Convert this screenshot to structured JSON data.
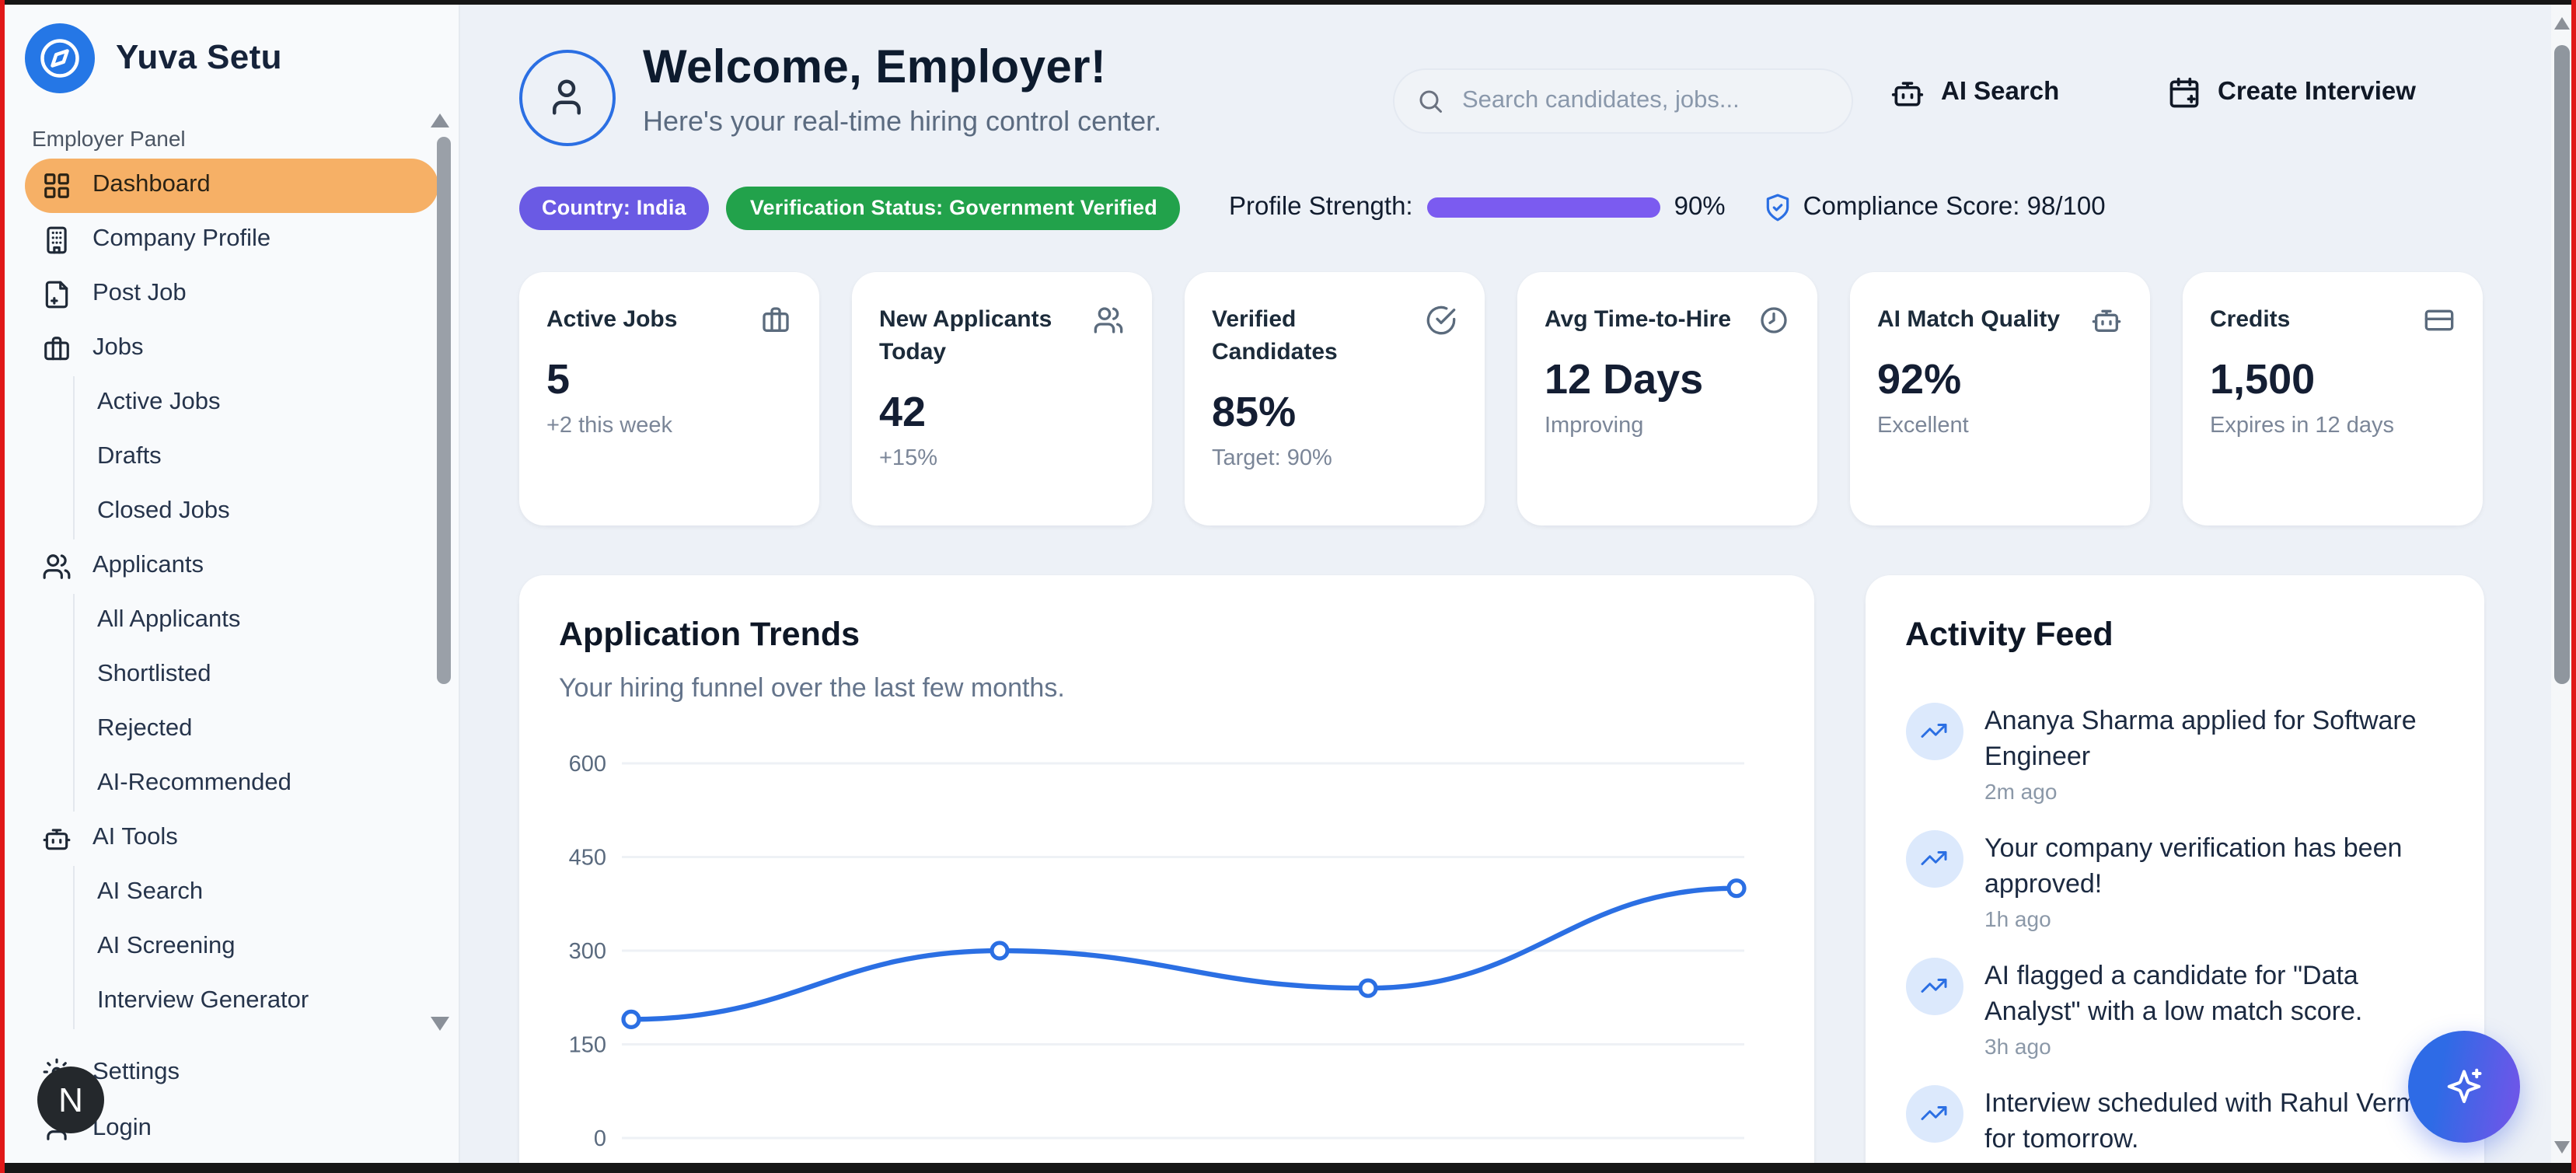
{
  "brand": {
    "name": "Yuva Setu",
    "logo_icon": "compass",
    "logo_color": "#2577e6"
  },
  "sidebar": {
    "section_label": "Employer Panel",
    "active_item_color": "#f6b066",
    "items": [
      {
        "label": "Dashboard",
        "icon": "grid",
        "active": true,
        "indent": 0
      },
      {
        "label": "Company Profile",
        "icon": "building",
        "indent": 0
      },
      {
        "label": "Post Job",
        "icon": "file-plus",
        "indent": 0
      },
      {
        "label": "Jobs",
        "icon": "briefcase",
        "indent": 0
      },
      {
        "label": "Active Jobs",
        "indent": 1
      },
      {
        "label": "Drafts",
        "indent": 1
      },
      {
        "label": "Closed Jobs",
        "indent": 1
      },
      {
        "label": "Applicants",
        "icon": "users",
        "indent": 0
      },
      {
        "label": "All Applicants",
        "indent": 1
      },
      {
        "label": "Shortlisted",
        "indent": 1
      },
      {
        "label": "Rejected",
        "indent": 1
      },
      {
        "label": "AI-Recommended",
        "indent": 1
      },
      {
        "label": "AI Tools",
        "icon": "bot",
        "indent": 0
      },
      {
        "label": "AI Search",
        "indent": 1
      },
      {
        "label": "AI Screening",
        "indent": 1
      },
      {
        "label": "Interview Generator",
        "indent": 1
      }
    ],
    "footer_items": [
      {
        "label": "Settings",
        "icon": "gear"
      },
      {
        "label": "Login",
        "icon": "user"
      }
    ],
    "overlay_badge": "N"
  },
  "header": {
    "title": "Welcome, Employer!",
    "subtitle": "Here's your real-time hiring control center.",
    "avatar_icon": "user",
    "search_placeholder": "Search candidates, jobs...",
    "actions": [
      {
        "label": "AI Search",
        "icon": "bot"
      },
      {
        "label": "Create Interview",
        "icon": "calendar-plus"
      }
    ]
  },
  "status_bar": {
    "badges": [
      {
        "label": "Country: India",
        "color": "#6a5ae4"
      },
      {
        "label": "Verification Status: Government Verified",
        "color": "#22a24b"
      }
    ],
    "profile_strength": {
      "label": "Profile Strength:",
      "percent": 90,
      "value_label": "90%",
      "fill_color": "#2b6fe3",
      "track_color": "#7b5bf0"
    },
    "compliance": {
      "label": "Compliance Score: 98/100",
      "icon": "shield-check",
      "icon_color": "#2b6fe3"
    }
  },
  "stats": [
    {
      "title": "Active Jobs",
      "icon": "briefcase",
      "value": "5",
      "note": "+2 this week"
    },
    {
      "title": "New Applicants Today",
      "icon": "users",
      "value": "42",
      "note": "+15%"
    },
    {
      "title": "Verified Candidates",
      "icon": "check-circle",
      "value": "85%",
      "note": "Target: 90%"
    },
    {
      "title": "Avg Time-to-Hire",
      "icon": "clock",
      "value": "12 Days",
      "note": "Improving"
    },
    {
      "title": "AI Match Quality",
      "icon": "bot",
      "value": "92%",
      "note": "Excellent"
    },
    {
      "title": "Credits",
      "icon": "credit-card",
      "value": "1,500",
      "note": "Expires in 12 days"
    }
  ],
  "chart_card": {
    "title": "Application Trends",
    "subtitle": "Your hiring funnel over the last few months."
  },
  "chart_data": {
    "type": "line",
    "values": [
      190,
      300,
      240,
      400
    ],
    "x_labels": [],
    "x_labels_note": "x-axis tick labels are cut off below the visible viewport",
    "y_ticks": [
      0,
      150,
      300,
      450,
      600
    ],
    "ylim": [
      0,
      600
    ],
    "grid": true,
    "legend": false,
    "line_color": "#2b6fe3",
    "marker": "hollow-circle",
    "title": "Application Trends",
    "subtitle": "Your hiring funnel over the last few months."
  },
  "activity_feed": {
    "title": "Activity Feed",
    "items": [
      {
        "icon": "trending-up",
        "text": "Ananya Sharma applied for Software Engineer",
        "time": "2m ago"
      },
      {
        "icon": "trending-up",
        "text": "Your company verification has been approved!",
        "time": "1h ago"
      },
      {
        "icon": "trending-up",
        "text": "AI flagged a candidate for \"Data Analyst\" with a low match score.",
        "time": "3h ago"
      },
      {
        "icon": "trending-up",
        "text": "Interview scheduled with Rahul Verma for tomorrow.",
        "time": ""
      }
    ]
  },
  "fab": {
    "icon": "sparkles",
    "gradient": [
      "#2e6be6",
      "#6b57e8"
    ]
  }
}
